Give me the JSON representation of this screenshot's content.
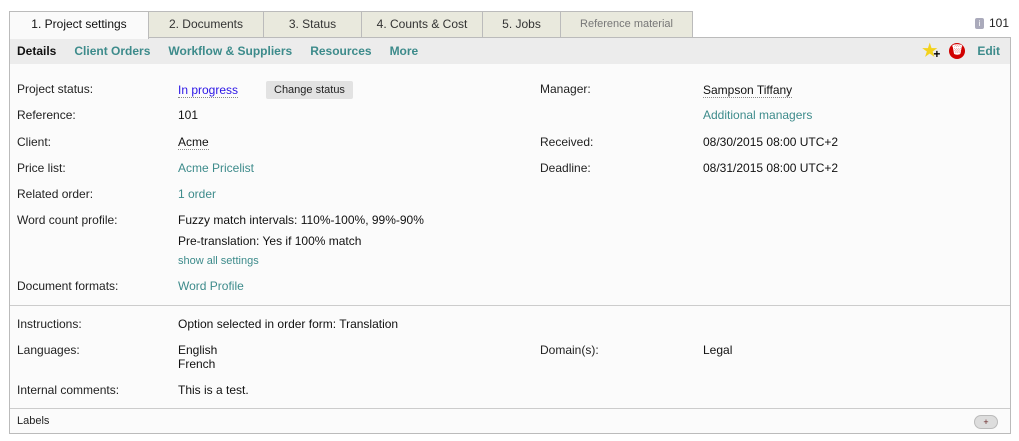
{
  "tabs": [
    "1. Project settings",
    "2. Documents",
    "3. Status",
    "4. Counts & Cost",
    "5. Jobs",
    "Reference material"
  ],
  "project_id": "101",
  "subnav": {
    "items": [
      "Details",
      "Client Orders",
      "Workflow & Suppliers",
      "Resources",
      "More"
    ],
    "edit": "Edit"
  },
  "fields": {
    "project_status": {
      "label": "Project status:",
      "value": "In progress",
      "button": "Change status"
    },
    "reference": {
      "label": "Reference:",
      "value": "101"
    },
    "client": {
      "label": "Client:",
      "value": "Acme"
    },
    "price_list": {
      "label": "Price list:",
      "value": "Acme Pricelist"
    },
    "related_order": {
      "label": "Related order:",
      "value": "1 order"
    },
    "word_count_profile": {
      "label": "Word count profile:",
      "line1": "Fuzzy match intervals: 110%-100%, 99%-90%",
      "line2": "Pre-translation: Yes if 100% match",
      "more": "show all settings"
    },
    "document_formats": {
      "label": "Document formats:",
      "value": "Word Profile"
    },
    "manager": {
      "label": "Manager:",
      "value": "Sampson Tiffany",
      "additional": "Additional managers"
    },
    "received": {
      "label": "Received:",
      "value": "08/30/2015 08:00 UTC+2"
    },
    "deadline": {
      "label": "Deadline:",
      "value": "08/31/2015 08:00 UTC+2"
    },
    "instructions": {
      "label": "Instructions:",
      "value": "Option selected in order form: Translation"
    },
    "languages": {
      "label": "Languages:",
      "values": [
        "English",
        "French"
      ]
    },
    "domains": {
      "label": "Domain(s):",
      "value": "Legal"
    },
    "internal_comments": {
      "label": "Internal comments:",
      "value": "This is a test."
    }
  },
  "labels": {
    "label": "Labels",
    "add": "+"
  }
}
